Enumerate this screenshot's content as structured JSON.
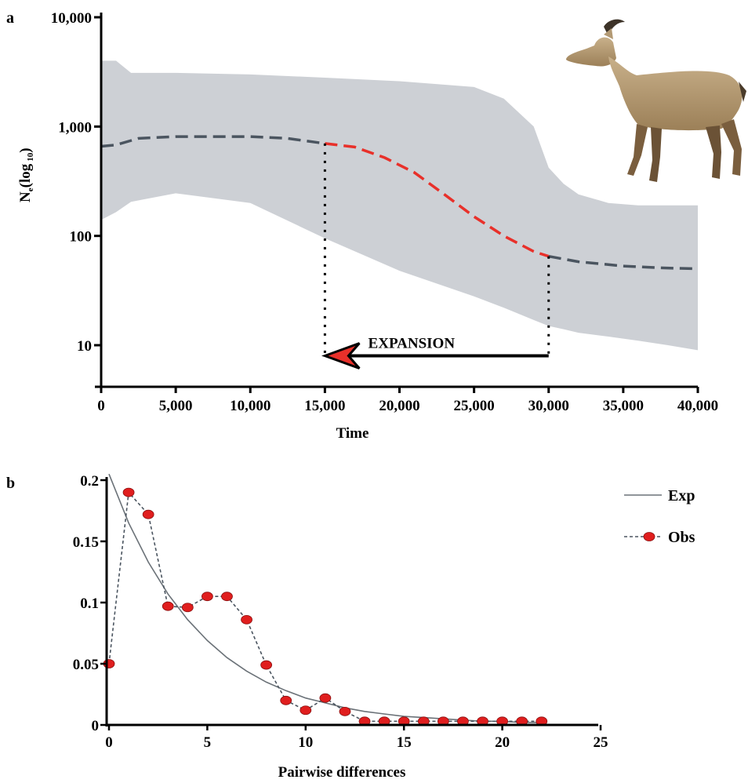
{
  "chart_data": [
    {
      "panel": "a",
      "type": "line",
      "y_scale": "log10",
      "xlabel": "Time",
      "ylabel_main": "N",
      "ylabel_sub": "e",
      "ylabel_rest": "(log",
      "ylabel_sub2": "10",
      "ylabel_close": ")",
      "xlim": [
        0,
        40000
      ],
      "ylim": [
        4,
        10000
      ],
      "x_ticks": [
        0,
        5000,
        10000,
        15000,
        20000,
        25000,
        30000,
        35000,
        40000
      ],
      "x_tick_labels": [
        "0",
        "5,000",
        "10,000",
        "15,000",
        "20,000",
        "25,000",
        "30,000",
        "35,000",
        "40,000"
      ],
      "y_ticks": [
        10,
        100,
        1000,
        10000
      ],
      "y_tick_labels": [
        "10",
        "100",
        "1,000",
        "10,000"
      ],
      "series": [
        {
          "name": "",
          "color": "#4b5560",
          "x": [
            0,
            1000,
            2500,
            5000,
            10000,
            12500,
            15000
          ],
          "y": [
            660,
            680,
            780,
            810,
            810,
            780,
            700
          ]
        },
        {
          "name": "",
          "color": "#e8302a",
          "x": [
            15000,
            17000,
            19000,
            21000,
            23000,
            25000,
            27000,
            29000,
            30000
          ],
          "y": [
            700,
            650,
            520,
            380,
            240,
            150,
            100,
            72,
            65
          ]
        },
        {
          "name": "",
          "color": "#4b5560",
          "x": [
            30000,
            32000,
            35000,
            37500,
            40000
          ],
          "y": [
            65,
            58,
            53,
            51,
            50
          ]
        }
      ],
      "band": {
        "color": "#cdd0d5",
        "x": [
          0,
          1000,
          2000,
          5000,
          10000,
          15000,
          20000,
          25000,
          27000,
          29000,
          30000,
          31000,
          32000,
          34000,
          36000,
          38000,
          40000
        ],
        "upper": [
          4000,
          4000,
          3100,
          3100,
          3000,
          2800,
          2600,
          2300,
          1800,
          1000,
          420,
          300,
          240,
          200,
          190,
          190,
          190
        ],
        "lower": [
          140,
          165,
          205,
          245,
          200,
          95,
          48,
          28,
          22,
          17,
          15,
          14,
          13,
          12,
          11,
          10,
          9
        ]
      },
      "annotation": {
        "text": "EXPANSION",
        "color": "#e8302a",
        "arrow_from_x": 30000,
        "arrow_to_x": 15000,
        "arrow_y": 8,
        "vlines_x": [
          15000,
          30000
        ]
      }
    },
    {
      "panel": "b",
      "type": "line",
      "xlabel": "Pairwise differences",
      "ylabel": "",
      "xlim": [
        0,
        25
      ],
      "ylim": [
        0,
        0.2
      ],
      "x_ticks": [
        0,
        5,
        10,
        15,
        20,
        25
      ],
      "x_tick_labels": [
        "0",
        "5",
        "10",
        "15",
        "20",
        "25"
      ],
      "y_ticks": [
        0,
        0.05,
        0.1,
        0.15,
        0.2
      ],
      "y_tick_labels": [
        "0",
        "0.05",
        "0.1",
        "0.15",
        "0.2"
      ],
      "legend_position": "top-right",
      "series": [
        {
          "name": "Exp",
          "color": "#6b7278",
          "style": "solid",
          "x": [
            0,
            1,
            2,
            3,
            4,
            5,
            6,
            7,
            8,
            9,
            10,
            11,
            12,
            13,
            14,
            15,
            16,
            17,
            18,
            19,
            20,
            21,
            22
          ],
          "y": [
            0.205,
            0.165,
            0.133,
            0.107,
            0.086,
            0.069,
            0.055,
            0.044,
            0.035,
            0.028,
            0.022,
            0.018,
            0.014,
            0.011,
            0.009,
            0.007,
            0.006,
            0.005,
            0.004,
            0.003,
            0.003,
            0.002,
            0.002
          ]
        },
        {
          "name": "Obs",
          "color": "#4b5560",
          "marker_color": "#e01e1e",
          "style": "dashed",
          "x": [
            0,
            1,
            2,
            3,
            4,
            5,
            6,
            7,
            8,
            9,
            10,
            11,
            12,
            13,
            14,
            15,
            16,
            17,
            18,
            19,
            20,
            21,
            22
          ],
          "y": [
            0.05,
            0.19,
            0.172,
            0.097,
            0.096,
            0.105,
            0.105,
            0.086,
            0.049,
            0.02,
            0.012,
            0.022,
            0.011,
            0.003,
            0.003,
            0.003,
            0.003,
            0.003,
            0.003,
            0.003,
            0.003,
            0.003,
            0.003
          ]
        }
      ]
    }
  ],
  "panel_labels": {
    "a": "a",
    "b": "b"
  }
}
